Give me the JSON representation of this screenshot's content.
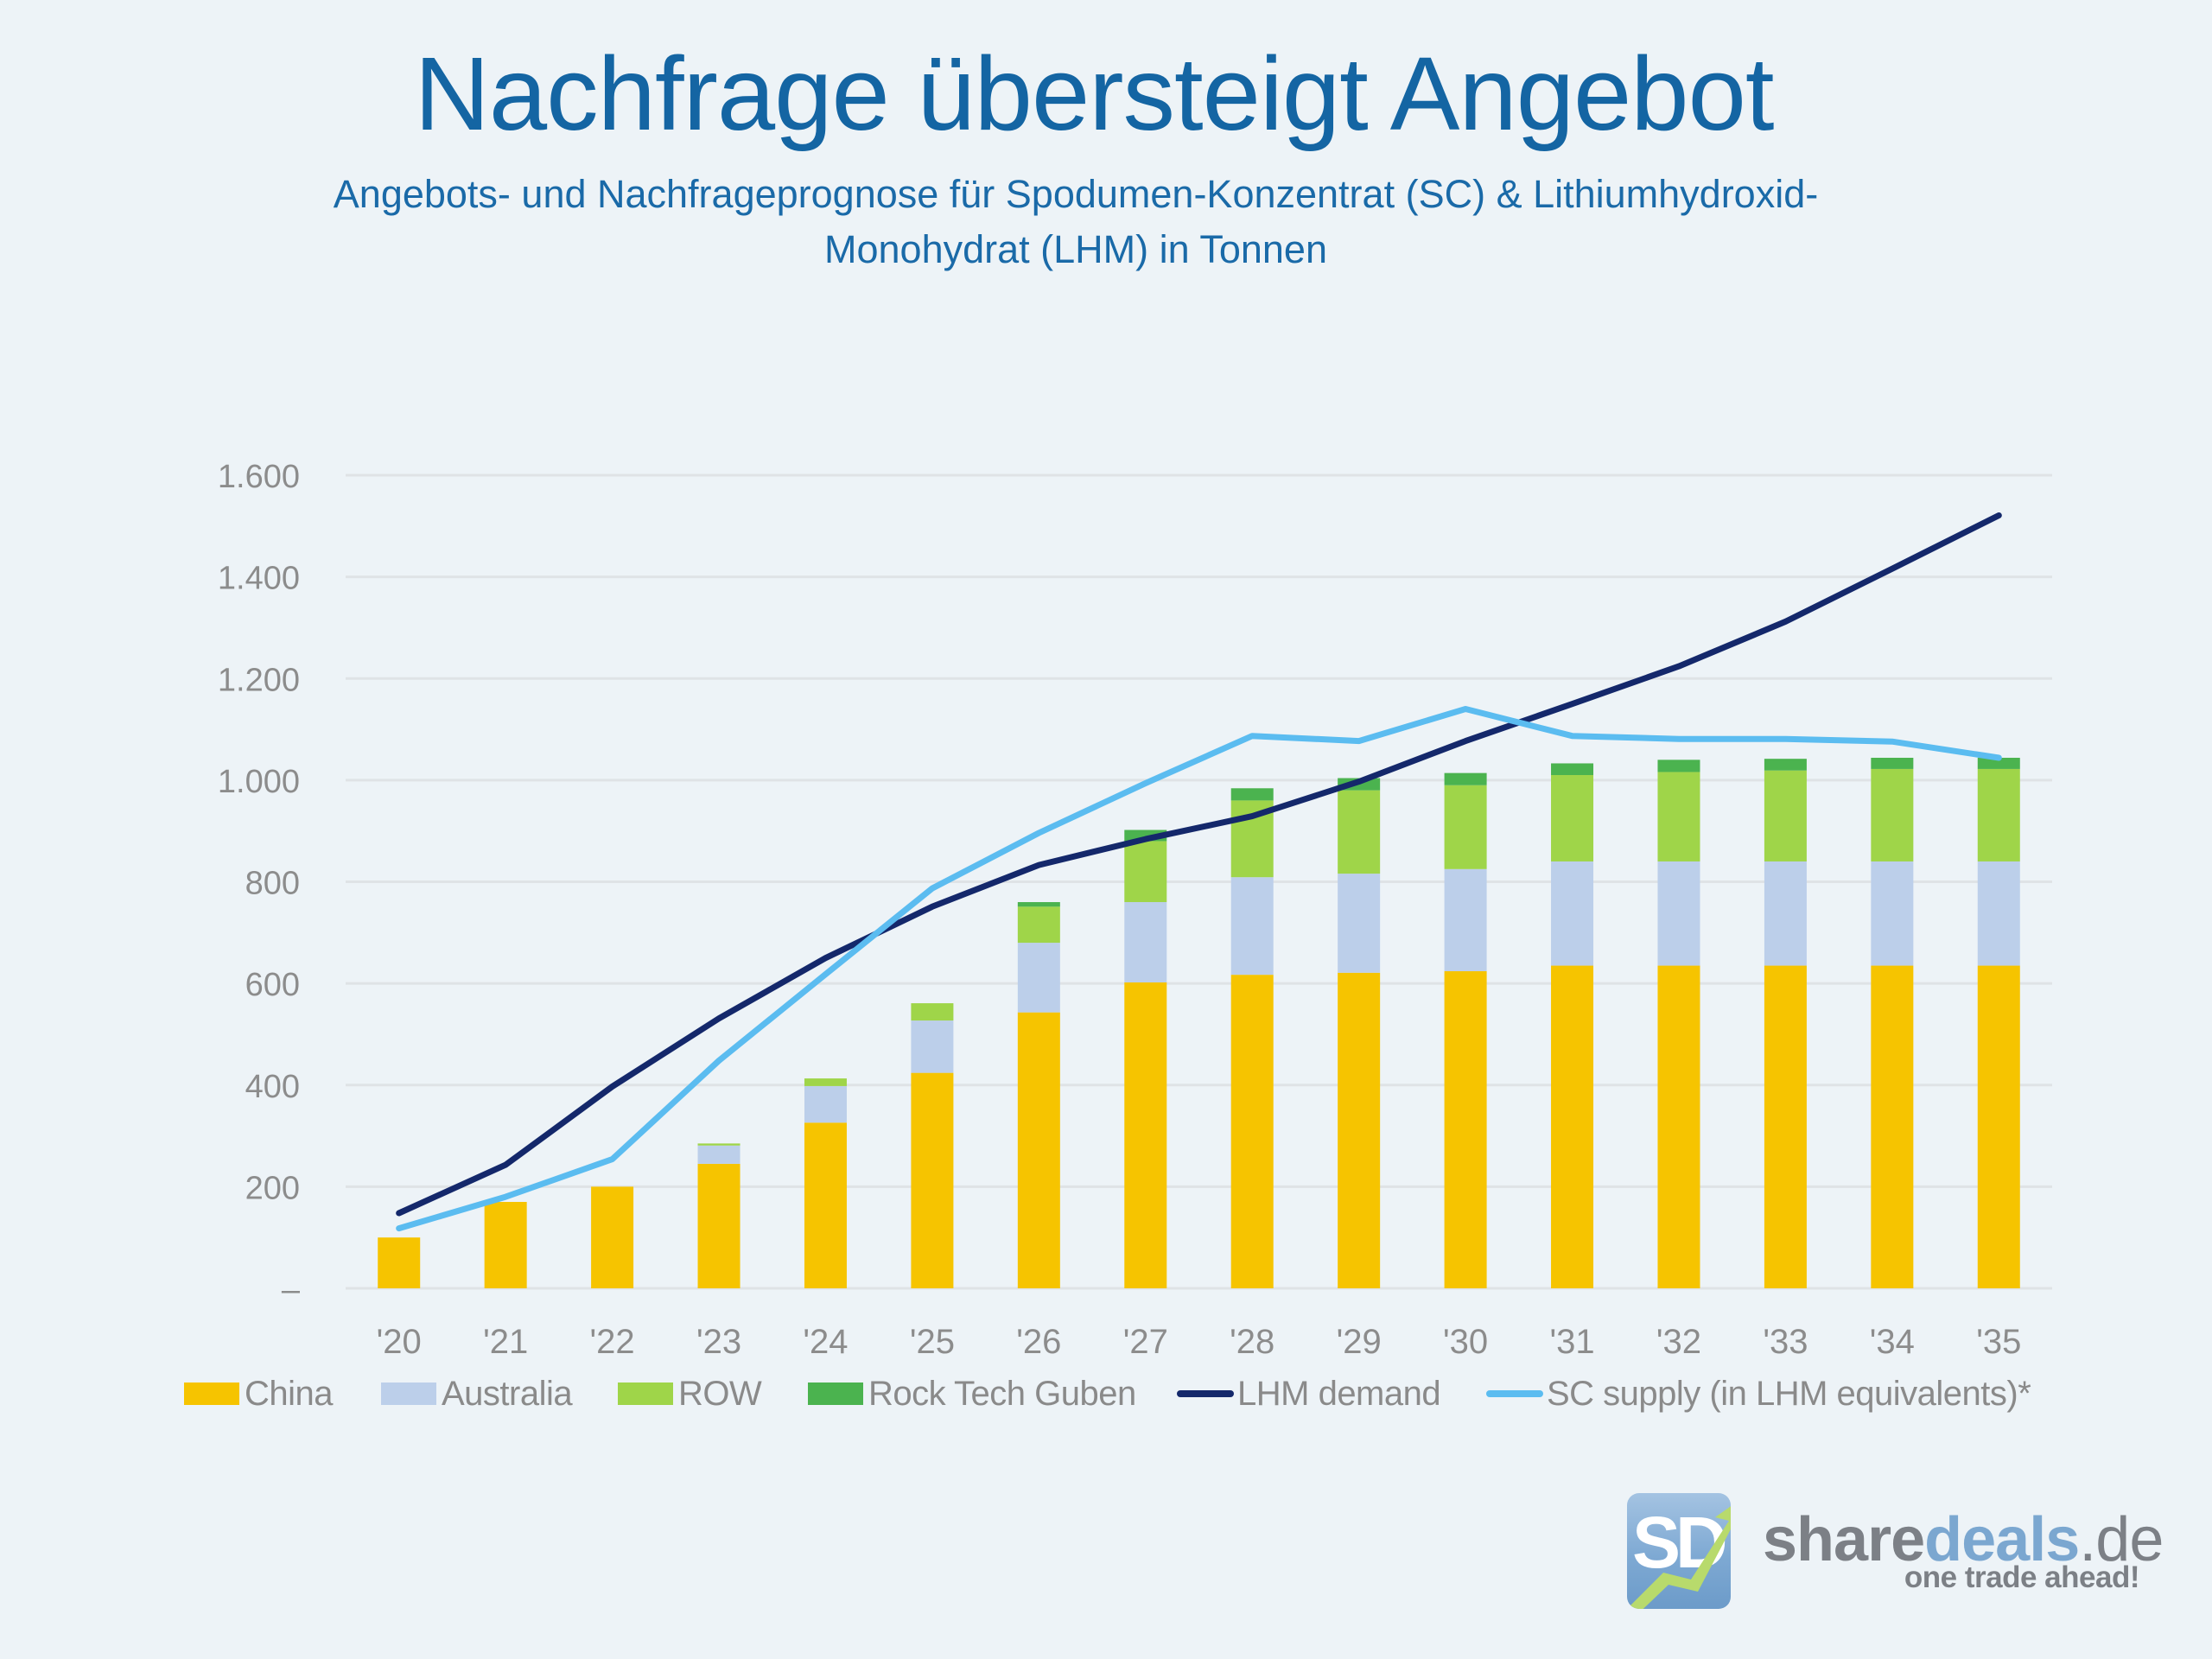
{
  "header": {
    "title": "Nachfrage übersteigt Angebot",
    "subtitle_line1": "Angebots- und Nachfrageprognose für Spodumen-Konzentrat (SC) &  Lithiumhydroxid-",
    "subtitle_line2": "Monohydrat (LHM) in Tonnen"
  },
  "colors": {
    "background": "#edf3f7",
    "title": "#1465a3",
    "china": "#f6c400",
    "australia": "#bccfea",
    "row": "#9fd549",
    "rock_tech_guben": "#4bb34f",
    "lhm_demand": "#14286b",
    "sc_supply": "#5bbcf0",
    "grid": "#dfe3e6",
    "axis_text": "#8c8c8c"
  },
  "chart_data": {
    "type": "bar",
    "stacked": true,
    "title": "Nachfrage übersteigt Angebot",
    "subtitle": "Angebots- und Nachfrageprognose für Spodumen-Konzentrat (SC) & Lithiumhydroxid-Monohydrat (LHM) in Tonnen",
    "xlabel": "",
    "ylabel": "",
    "categories": [
      "'20",
      "'21",
      "'22",
      "'23",
      "'24",
      "'25",
      "'26",
      "'27",
      "'28",
      "'29",
      "'30",
      "'31",
      "'32",
      "'33",
      "'34",
      "'35"
    ],
    "ylim": [
      0,
      1600
    ],
    "yticks": [
      0,
      200,
      400,
      600,
      800,
      1000,
      1200,
      1400,
      1600
    ],
    "ytick_labels": [
      "–",
      "200",
      "400",
      "600",
      "800",
      "1.000",
      "1.200",
      "1.400",
      "1.600"
    ],
    "grid": true,
    "legend_position": "bottom",
    "series": [
      {
        "name": "China",
        "kind": "bar",
        "color_key": "china",
        "values": [
          100,
          170,
          200,
          245,
          326,
          424,
          543,
          602,
          617,
          621,
          624,
          635,
          635,
          635,
          635,
          635
        ]
      },
      {
        "name": "Australia",
        "kind": "bar",
        "color_key": "australia",
        "values": [
          0,
          0,
          0,
          36,
          72,
          103,
          137,
          158,
          192,
          195,
          201,
          205,
          205,
          205,
          205,
          205
        ]
      },
      {
        "name": "ROW",
        "kind": "bar",
        "color_key": "row",
        "values": [
          0,
          0,
          0,
          4,
          15,
          34,
          71,
          120,
          151,
          164,
          165,
          170,
          176,
          179,
          182,
          182
        ]
      },
      {
        "name": "Rock Tech Guben",
        "kind": "bar",
        "color_key": "rock_tech_guben",
        "values": [
          0,
          0,
          0,
          0,
          0,
          0,
          9,
          22,
          24,
          24,
          24,
          23,
          24,
          23,
          22,
          22
        ]
      },
      {
        "name": "LHM demand",
        "kind": "line",
        "color_key": "lhm_demand",
        "values": [
          148,
          243,
          397,
          531,
          650,
          751,
          833,
          884,
          929,
          997,
          1077,
          1150,
          1224,
          1312,
          1416,
          1521
        ]
      },
      {
        "name": "SC supply (in LHM equivalents)*",
        "kind": "line",
        "color_key": "sc_supply",
        "values": [
          118,
          180,
          254,
          448,
          618,
          787,
          896,
          994,
          1087,
          1077,
          1140,
          1087,
          1081,
          1081,
          1076,
          1044
        ]
      }
    ]
  },
  "legend": [
    {
      "label": "China",
      "type": "swatch",
      "color_key": "china"
    },
    {
      "label": "Australia",
      "type": "swatch",
      "color_key": "australia"
    },
    {
      "label": "ROW",
      "type": "swatch",
      "color_key": "row"
    },
    {
      "label": "Rock Tech Guben",
      "type": "swatch",
      "color_key": "rock_tech_guben"
    },
    {
      "label": "LHM demand",
      "type": "line",
      "color_key": "lhm_demand"
    },
    {
      "label": "SC supply (in LHM equivalents)*",
      "type": "line",
      "color_key": "sc_supply"
    }
  ],
  "logo": {
    "icon_text": "SD",
    "word_share": "share",
    "word_deals": "deals",
    "word_tld": ".de",
    "tagline": "one trade ahead!"
  }
}
